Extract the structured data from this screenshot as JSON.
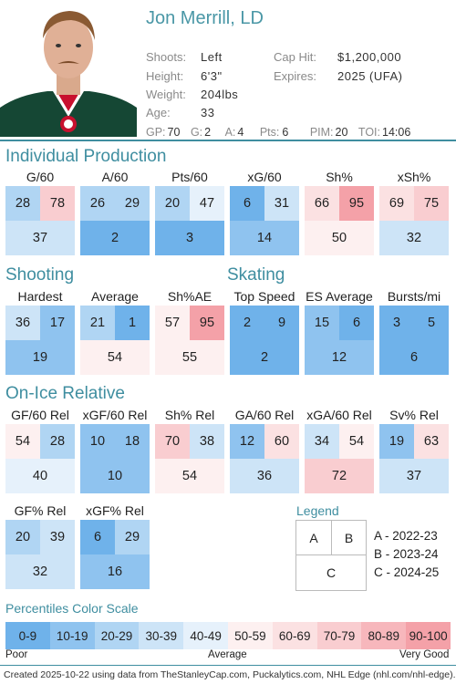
{
  "player": {
    "name": "Jon Merrill, LD",
    "info": [
      {
        "label": "Shoots:",
        "value": "Left"
      },
      {
        "label": "Height:",
        "value": "6'3\""
      },
      {
        "label": "Weight:",
        "value": "204lbs"
      },
      {
        "label": "Age:",
        "value": "33"
      }
    ],
    "contract": [
      {
        "label": "Cap Hit:",
        "value": "$1,200,000"
      },
      {
        "label": "Expires:",
        "value": "2025 (UFA)"
      }
    ],
    "stats": [
      {
        "label": "GP:",
        "value": "70"
      },
      {
        "label": "G:",
        "value": "2"
      },
      {
        "label": "A:",
        "value": "4"
      },
      {
        "label": "Pts:",
        "value": "6"
      },
      {
        "label": "PIM:",
        "value": "20"
      },
      {
        "label": "TOI:",
        "value": "14:06"
      }
    ]
  },
  "sections": {
    "production": "Individual Production",
    "shooting": "Shooting",
    "skating": "Skating",
    "onice": "On-Ice Relative"
  },
  "metrics": {
    "g60": {
      "title": "G/60",
      "a": 28,
      "b": 78,
      "c": 37
    },
    "a60": {
      "title": "A/60",
      "a": 26,
      "b": 29,
      "c": 2
    },
    "pts60": {
      "title": "Pts/60",
      "a": 20,
      "b": 47,
      "c": 3
    },
    "xg60": {
      "title": "xG/60",
      "a": 6,
      "b": 31,
      "c": 14
    },
    "shp": {
      "title": "Sh%",
      "a": 66,
      "b": 95,
      "c": 50
    },
    "xshp": {
      "title": "xSh%",
      "a": 69,
      "b": 75,
      "c": 32
    },
    "hardest": {
      "title": "Hardest",
      "a": 36,
      "b": 17,
      "c": 19
    },
    "average": {
      "title": "Average",
      "a": 21,
      "b": 1,
      "c": 54
    },
    "shpae": {
      "title": "Sh%AE",
      "a": 57,
      "b": 95,
      "c": 55
    },
    "topspeed": {
      "title": "Top Speed",
      "a": 2,
      "b": 9,
      "c": 2
    },
    "esavg": {
      "title": "ES Average",
      "a": 15,
      "b": 6,
      "c": 12
    },
    "bursts": {
      "title": "Bursts/mi",
      "a": 3,
      "b": 5,
      "c": 6
    },
    "gf60rel": {
      "title": "GF/60 Rel",
      "a": 54,
      "b": 28,
      "c": 40
    },
    "xgf60rel": {
      "title": "xGF/60 Rel",
      "a": 10,
      "b": 18,
      "c": 10
    },
    "shrel": {
      "title": "Sh% Rel",
      "a": 70,
      "b": 38,
      "c": 54
    },
    "ga60rel": {
      "title": "GA/60 Rel",
      "a": 12,
      "b": 60,
      "c": 36
    },
    "xga60rel": {
      "title": "xGA/60 Rel",
      "a": 34,
      "b": 54,
      "c": 72
    },
    "svrel": {
      "title": "Sv% Rel",
      "a": 19,
      "b": 63,
      "c": 37
    },
    "gfprel": {
      "title": "GF% Rel",
      "a": 20,
      "b": 39,
      "c": 32
    },
    "xgfprel": {
      "title": "xGF% Rel",
      "a": 6,
      "b": 29,
      "c": 16
    }
  },
  "legend": {
    "title": "Legend",
    "a": "A",
    "b": "B",
    "c": "C",
    "a_text": "A - 2022-23",
    "b_text": "B - 2023-24",
    "c_text": "C - 2024-25"
  },
  "scale": {
    "title": "Percentiles Color Scale",
    "bins": [
      "0-9",
      "10-19",
      "20-29",
      "30-39",
      "40-49",
      "50-59",
      "60-69",
      "70-79",
      "80-89",
      "90-100"
    ],
    "colors": [
      "#6fb2ea",
      "#8fc3ef",
      "#b0d5f3",
      "#cde4f7",
      "#e6f1fb",
      "#fdf0f0",
      "#fbe1e2",
      "#f9cdd0",
      "#f7b7bc",
      "#f4a1a8"
    ],
    "poor": "Poor",
    "average": "Average",
    "very_good": "Very Good"
  },
  "footer": "Created 2025-10-22 using data from TheStanleyCap.com, Puckalytics.com, NHL Edge (nhl.com/nhl-edge)."
}
